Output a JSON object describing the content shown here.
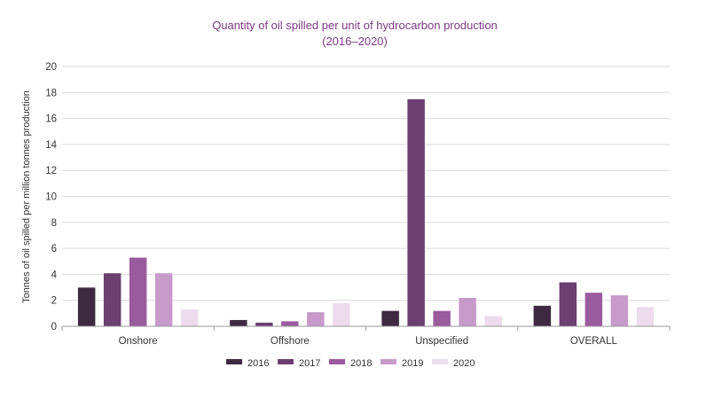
{
  "chart_data": {
    "type": "bar",
    "title": "Quantity of oil spilled per unit of hydrocarbon production",
    "subtitle": "(2016–2020)",
    "xlabel": "",
    "ylabel": "Tonnes of oil spilled per million tonnes production",
    "ylim": [
      0,
      20
    ],
    "yticks": [
      "0",
      "2",
      "4",
      "6",
      "8",
      "10",
      "12",
      "14",
      "16",
      "18",
      "20"
    ],
    "grid": true,
    "legend_position": "bottom",
    "categories": [
      "Onshore",
      "Offshore",
      "Unspecified",
      "OVERALL"
    ],
    "series": [
      {
        "name": "2016",
        "color": "#3d2a40",
        "values": [
          3.0,
          0.5,
          1.2,
          1.6
        ]
      },
      {
        "name": "2017",
        "color": "#6b3f6f",
        "values": [
          4.1,
          0.3,
          17.5,
          3.4
        ]
      },
      {
        "name": "2018",
        "color": "#9a5a9e",
        "values": [
          5.3,
          0.4,
          1.2,
          2.6
        ]
      },
      {
        "name": "2019",
        "color": "#c79ac9",
        "values": [
          4.1,
          1.1,
          2.2,
          2.4
        ]
      },
      {
        "name": "2020",
        "color": "#ecdcec",
        "values": [
          1.3,
          1.8,
          0.8,
          1.5
        ]
      }
    ]
  }
}
